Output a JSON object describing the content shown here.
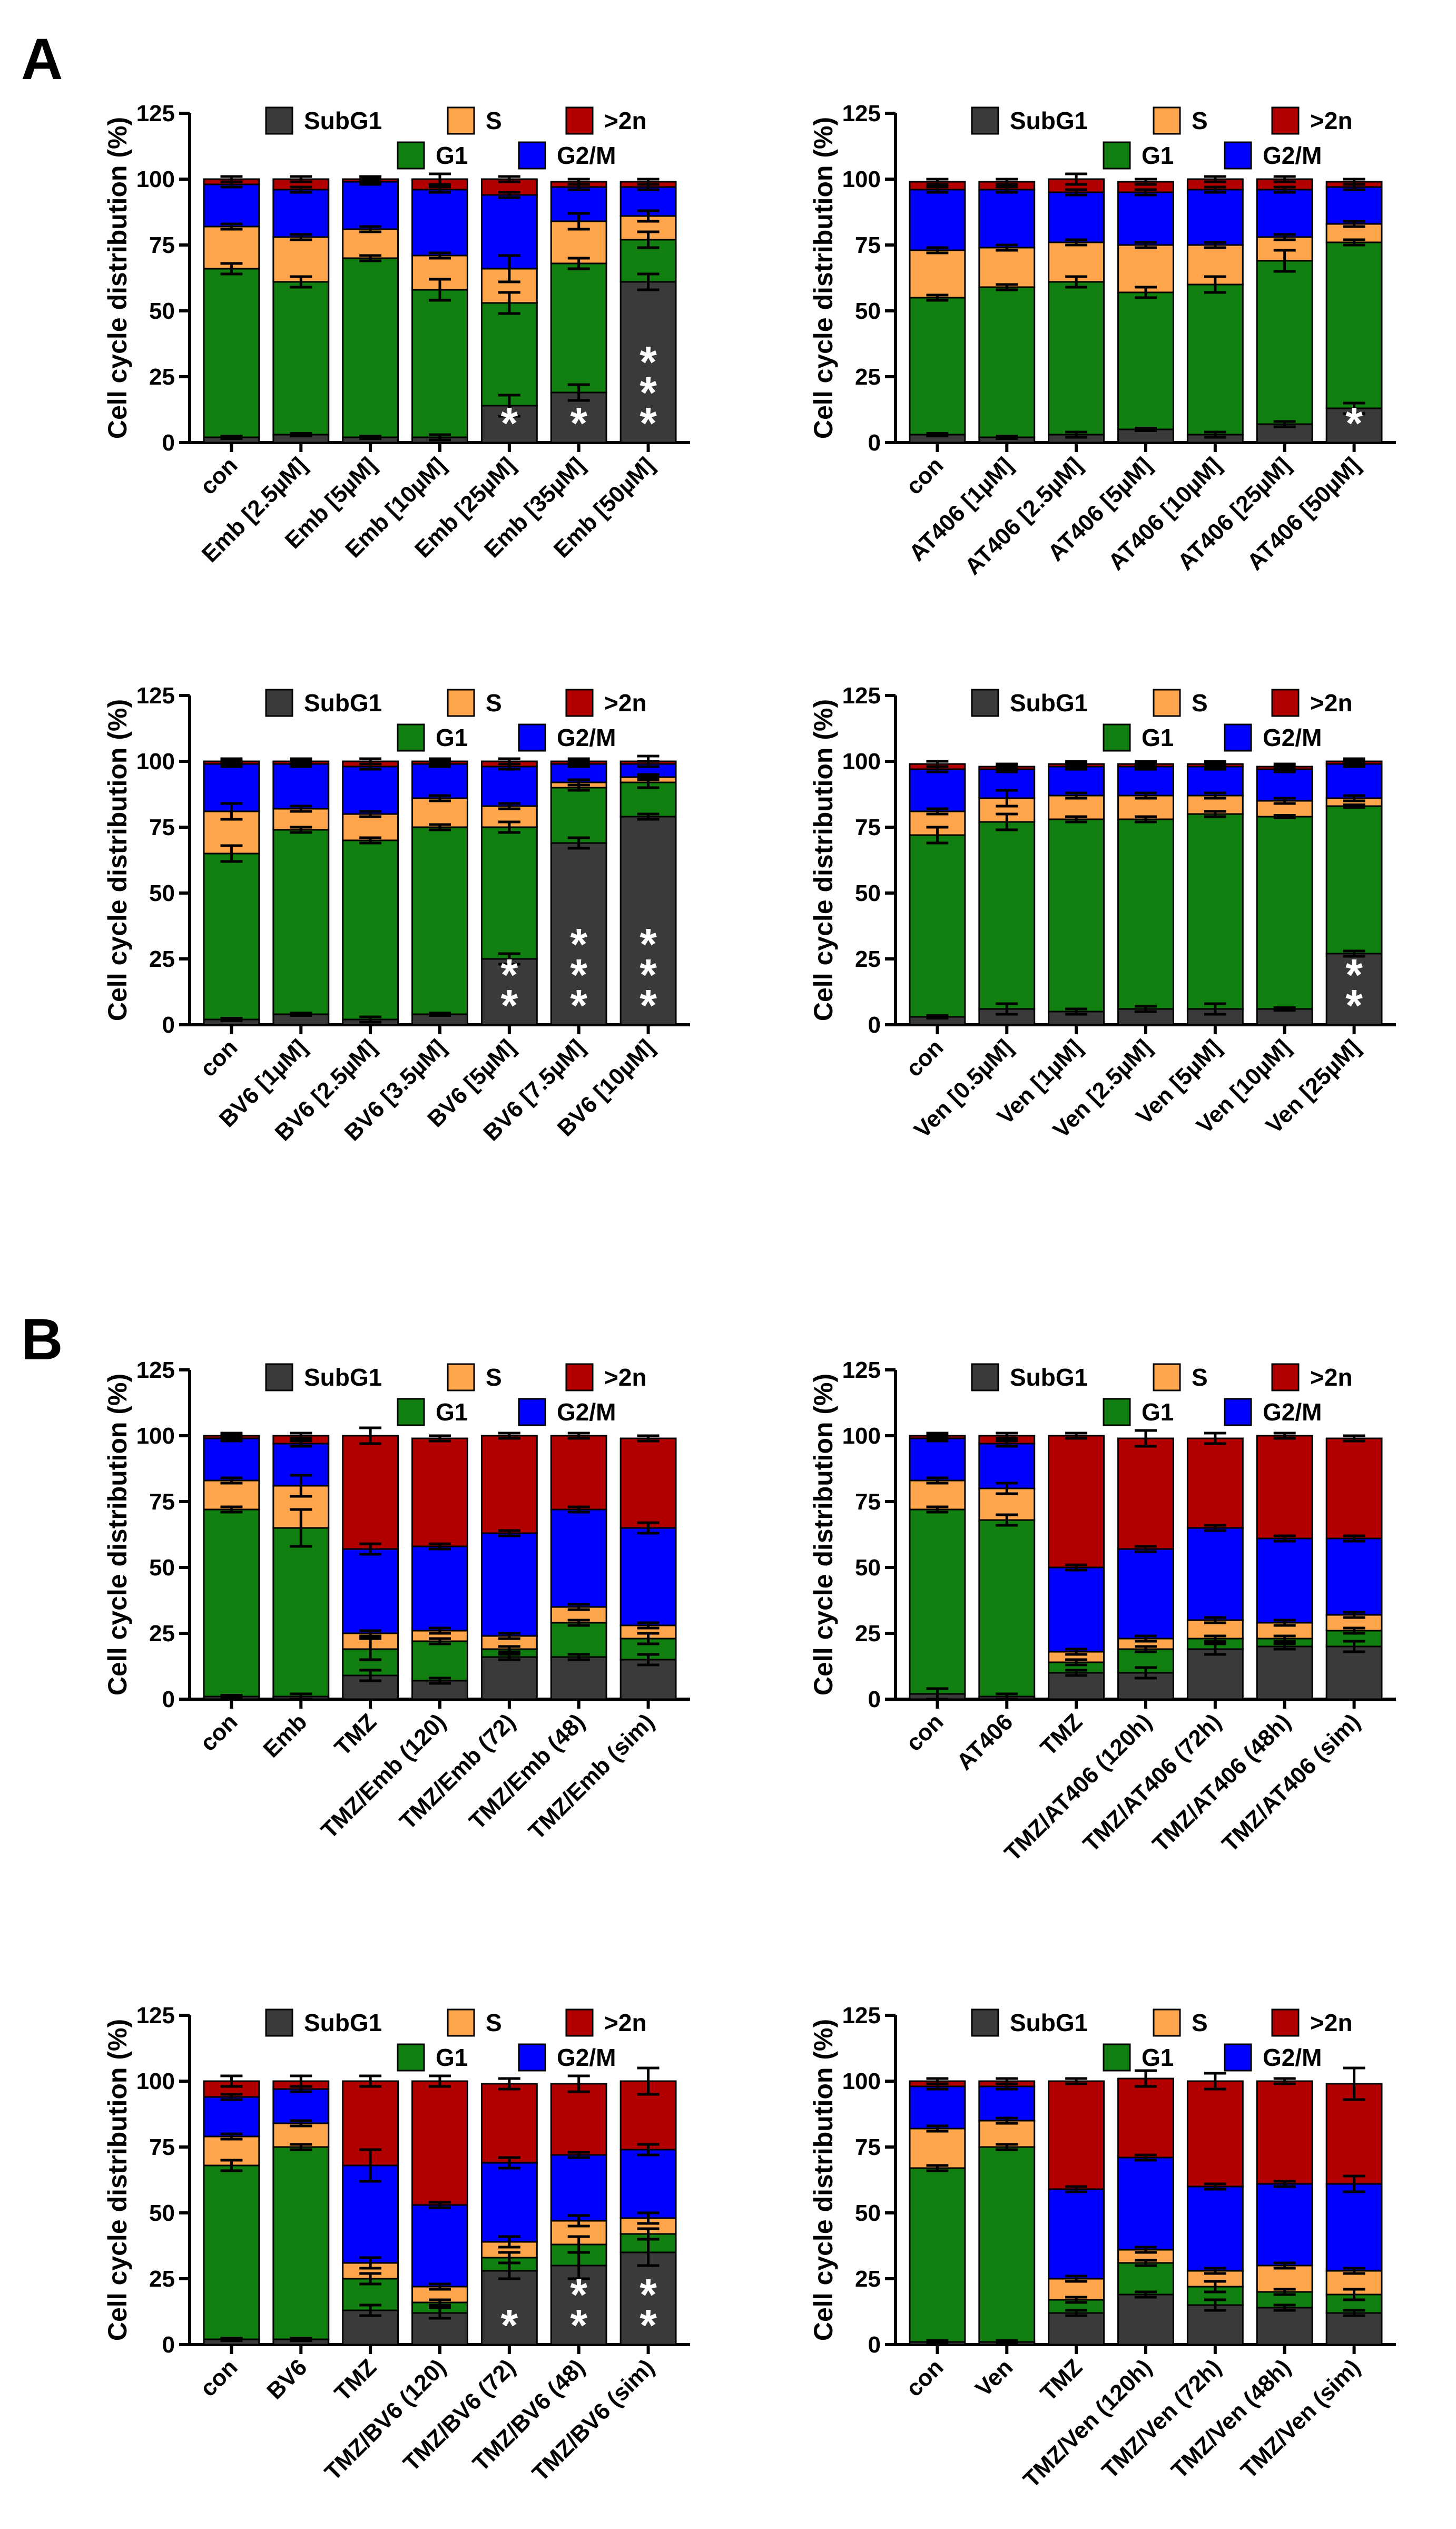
{
  "figure": {
    "panel_labels": [
      "A",
      "B"
    ],
    "legend": [
      {
        "key": "SubG1",
        "label": "SubG1",
        "color": "#3a3a3a"
      },
      {
        "key": "S",
        "label": "S",
        "color": "#ffa64d"
      },
      {
        "key": "N2",
        "label": ">2n",
        "color": "#b20000"
      },
      {
        "key": "G1",
        "label": "G1",
        "color": "#118011"
      },
      {
        "key": "G2M",
        "label": "G2/M",
        "color": "#0000ff"
      }
    ],
    "significance_color": "#ffffff"
  },
  "chart_data": [
    {
      "type": "bar",
      "stacked": true,
      "panel": "A",
      "title": "",
      "xlabel": "",
      "ylabel": "Cell cycle distribution (%)",
      "ylim": [
        0,
        125
      ],
      "yticks": [
        0,
        25,
        50,
        75,
        100,
        125
      ],
      "stack_order": [
        "SubG1",
        "G1",
        "S",
        "G2/M",
        ">2n"
      ],
      "legend_position": "top",
      "categories": [
        "con",
        "Emb [2.5µM]",
        "Emb [5µM]",
        "Emb [10µM]",
        "Emb [25µM]",
        "Emb [35µM]",
        "Emb [50µM]"
      ],
      "series": [
        {
          "name": "SubG1",
          "values": [
            2,
            3,
            2,
            2,
            14,
            19,
            61
          ]
        },
        {
          "name": "G1",
          "values": [
            64,
            58,
            68,
            56,
            39,
            49,
            16
          ]
        },
        {
          "name": "S",
          "values": [
            16,
            17,
            11,
            13,
            13,
            16,
            9
          ]
        },
        {
          "name": "G2/M",
          "values": [
            16,
            18,
            18,
            25,
            28,
            13,
            11
          ]
        },
        {
          "name": ">2n",
          "values": [
            2,
            4,
            1,
            4,
            6,
            2,
            2
          ]
        }
      ],
      "error_bars": {
        "SubG1": [
          0.5,
          0.5,
          0.5,
          1,
          4,
          3,
          3
        ],
        "G1": [
          2,
          2,
          1,
          4,
          4,
          2,
          3
        ],
        "S": [
          1,
          1,
          1,
          1,
          5,
          3,
          2
        ],
        "G2/M": [
          1,
          1,
          1,
          1,
          1,
          1,
          1
        ],
        ">2n": [
          1,
          1,
          1,
          2,
          1,
          1,
          1
        ]
      },
      "annotations": [
        "",
        "",
        "",
        "",
        "*",
        "*",
        "***"
      ]
    },
    {
      "type": "bar",
      "stacked": true,
      "panel": "A",
      "title": "",
      "xlabel": "",
      "ylabel": "Cell cycle distribution (%)",
      "ylim": [
        0,
        125
      ],
      "yticks": [
        0,
        25,
        50,
        75,
        100,
        125
      ],
      "stack_order": [
        "SubG1",
        "G1",
        "S",
        "G2/M",
        ">2n"
      ],
      "legend_position": "top",
      "categories": [
        "con",
        "AT406 [1µM]",
        "AT406 [2.5µM]",
        "AT406 [5µM]",
        "AT406 [10µM]",
        "AT406 [25µM]",
        "AT406 [50µM]"
      ],
      "series": [
        {
          "name": "SubG1",
          "values": [
            3,
            2,
            3,
            5,
            3,
            7,
            13
          ]
        },
        {
          "name": "G1",
          "values": [
            52,
            57,
            58,
            52,
            57,
            62,
            63
          ]
        },
        {
          "name": "S",
          "values": [
            18,
            15,
            15,
            18,
            15,
            9,
            7
          ]
        },
        {
          "name": "G2/M",
          "values": [
            23,
            22,
            19,
            20,
            21,
            18,
            14
          ]
        },
        {
          "name": ">2n",
          "values": [
            3,
            3,
            5,
            4,
            4,
            4,
            2
          ]
        }
      ],
      "error_bars": {
        "SubG1": [
          0.5,
          0.5,
          1,
          0.5,
          1,
          1,
          2
        ],
        "G1": [
          1,
          1,
          2,
          2,
          3,
          4,
          1
        ],
        "S": [
          1,
          1,
          1,
          1,
          1,
          1,
          1
        ],
        "G2/M": [
          1,
          1,
          1,
          1,
          1,
          1,
          1
        ],
        ">2n": [
          1,
          1,
          2,
          1,
          1,
          1,
          1
        ]
      },
      "annotations": [
        "",
        "",
        "",
        "",
        "",
        "",
        "*"
      ]
    },
    {
      "type": "bar",
      "stacked": true,
      "panel": "A",
      "title": "",
      "xlabel": "",
      "ylabel": "Cell cycle distribution (%)",
      "ylim": [
        0,
        125
      ],
      "yticks": [
        0,
        25,
        50,
        75,
        100,
        125
      ],
      "stack_order": [
        "SubG1",
        "G1",
        "S",
        "G2/M",
        ">2n"
      ],
      "legend_position": "top",
      "categories": [
        "con",
        "BV6 [1µM]",
        "BV6 [2.5µM]",
        "BV6 [3.5µM]",
        "BV6 [5µM]",
        "BV6 [7.5µM]",
        "BV6 [10µM]"
      ],
      "series": [
        {
          "name": "SubG1",
          "values": [
            2,
            4,
            2,
            4,
            25,
            69,
            79
          ]
        },
        {
          "name": "G1",
          "values": [
            63,
            70,
            68,
            71,
            50,
            21,
            13
          ]
        },
        {
          "name": "S",
          "values": [
            16,
            8,
            10,
            11,
            8,
            2,
            2
          ]
        },
        {
          "name": "G2/M",
          "values": [
            18,
            17,
            18,
            13,
            15,
            7,
            5
          ]
        },
        {
          "name": ">2n",
          "values": [
            1,
            1,
            2,
            1,
            2,
            1,
            1
          ]
        }
      ],
      "error_bars": {
        "SubG1": [
          0.5,
          0.5,
          1,
          0.5,
          2,
          2,
          1
        ],
        "G1": [
          3,
          1,
          1,
          1,
          2,
          1,
          2
        ],
        "S": [
          3,
          1,
          1,
          1,
          1,
          1,
          1
        ],
        "G2/M": [
          1,
          1,
          1,
          1,
          1,
          1,
          1
        ],
        ">2n": [
          1,
          1,
          1,
          1,
          1,
          1,
          2
        ]
      },
      "annotations": [
        "",
        "",
        "",
        "",
        "**",
        "***",
        "***"
      ]
    },
    {
      "type": "bar",
      "stacked": true,
      "panel": "A",
      "title": "",
      "xlabel": "",
      "ylabel": "Cell cycle distribution (%)",
      "ylim": [
        0,
        125
      ],
      "yticks": [
        0,
        25,
        50,
        75,
        100,
        125
      ],
      "stack_order": [
        "SubG1",
        "G1",
        "S",
        "G2/M",
        ">2n"
      ],
      "legend_position": "top",
      "categories": [
        "con",
        "Ven [0.5µM]",
        "Ven [1µM]",
        "Ven [2.5µM]",
        "Ven [5µM]",
        "Ven [10µM]",
        "Ven [25µM]"
      ],
      "series": [
        {
          "name": "SubG1",
          "values": [
            3,
            6,
            5,
            6,
            6,
            6,
            27
          ]
        },
        {
          "name": "G1",
          "values": [
            69,
            71,
            73,
            72,
            74,
            73,
            56
          ]
        },
        {
          "name": "S",
          "values": [
            9,
            9,
            9,
            9,
            7,
            6,
            3
          ]
        },
        {
          "name": "G2/M",
          "values": [
            16,
            11,
            11,
            11,
            11,
            12,
            13
          ]
        },
        {
          "name": ">2n",
          "values": [
            2,
            1,
            1,
            1,
            1,
            1,
            1
          ]
        }
      ],
      "error_bars": {
        "SubG1": [
          0.5,
          2,
          1,
          1,
          2,
          0.5,
          1
        ],
        "G1": [
          3,
          3,
          1,
          1,
          1,
          0.5,
          0.5
        ],
        "S": [
          1,
          3,
          1,
          1,
          1,
          1,
          1
        ],
        "G2/M": [
          1,
          1,
          1,
          1,
          1,
          1,
          1
        ],
        ">2n": [
          1,
          1,
          1,
          1,
          1,
          1,
          1
        ]
      },
      "annotations": [
        "",
        "",
        "",
        "",
        "",
        "",
        "**"
      ]
    },
    {
      "type": "bar",
      "stacked": true,
      "panel": "B",
      "title": "",
      "xlabel": "",
      "ylabel": "Cell cycle distribution (%)",
      "ylim": [
        0,
        125
      ],
      "yticks": [
        0,
        25,
        50,
        75,
        100,
        125
      ],
      "stack_order": [
        "SubG1",
        "G1",
        "S",
        "G2/M",
        ">2n"
      ],
      "legend_position": "top",
      "categories": [
        "con",
        "Emb",
        "TMZ",
        "TMZ/Emb (120)",
        "TMZ/Emb (72)",
        "TMZ/Emb (48)",
        "TMZ/Emb (sim)"
      ],
      "series": [
        {
          "name": "SubG1",
          "values": [
            1,
            1,
            9,
            7,
            16,
            16,
            15
          ]
        },
        {
          "name": "G1",
          "values": [
            71,
            64,
            10,
            15,
            3,
            13,
            8
          ]
        },
        {
          "name": "S",
          "values": [
            11,
            16,
            6,
            4,
            5,
            6,
            5
          ]
        },
        {
          "name": "G2/M",
          "values": [
            16,
            16,
            32,
            32,
            39,
            37,
            37
          ]
        },
        {
          "name": ">2n",
          "values": [
            1,
            3,
            43,
            41,
            37,
            28,
            34
          ]
        }
      ],
      "error_bars": {
        "SubG1": [
          0.5,
          1,
          2,
          1,
          1,
          1,
          2
        ],
        "G1": [
          1,
          7,
          4,
          1,
          1,
          1,
          2
        ],
        "S": [
          1,
          4,
          1,
          1,
          1,
          1,
          1
        ],
        "G2/M": [
          1,
          1,
          2,
          1,
          1,
          1,
          2
        ],
        ">2n": [
          1,
          1,
          3,
          1,
          1,
          1,
          1
        ]
      },
      "annotations": [
        "",
        "",
        "",
        "",
        "",
        "",
        ""
      ]
    },
    {
      "type": "bar",
      "stacked": true,
      "panel": "B",
      "title": "",
      "xlabel": "",
      "ylabel": "Cell cycle distribution (%)",
      "ylim": [
        0,
        125
      ],
      "yticks": [
        0,
        25,
        50,
        75,
        100,
        125
      ],
      "stack_order": [
        "SubG1",
        "G1",
        "S",
        "G2/M",
        ">2n"
      ],
      "legend_position": "top",
      "categories": [
        "con",
        "AT406",
        "TMZ",
        "TMZ/AT406 (120h)",
        "TMZ/AT406 (72h)",
        "TMZ/AT406 (48h)",
        "TMZ/AT406 (sim)"
      ],
      "series": [
        {
          "name": "SubG1",
          "values": [
            2,
            1,
            10,
            10,
            19,
            20,
            20
          ]
        },
        {
          "name": "G1",
          "values": [
            70,
            67,
            4,
            9,
            4,
            3,
            6
          ]
        },
        {
          "name": "S",
          "values": [
            11,
            12,
            4,
            4,
            7,
            6,
            6
          ]
        },
        {
          "name": "G2/M",
          "values": [
            16,
            17,
            32,
            34,
            35,
            32,
            29
          ]
        },
        {
          "name": ">2n",
          "values": [
            1,
            3,
            50,
            42,
            34,
            39,
            38
          ]
        }
      ],
      "error_bars": {
        "SubG1": [
          2,
          1,
          1,
          2,
          2,
          1,
          2
        ],
        "G1": [
          1,
          2,
          1,
          1,
          1,
          1,
          1
        ],
        "S": [
          1,
          2,
          1,
          1,
          1,
          1,
          1
        ],
        "G2/M": [
          1,
          1,
          1,
          1,
          1,
          1,
          1
        ],
        ">2n": [
          1,
          1,
          1,
          3,
          2,
          1,
          1
        ]
      },
      "annotations": [
        "",
        "",
        "",
        "",
        "",
        "",
        ""
      ]
    },
    {
      "type": "bar",
      "stacked": true,
      "panel": "B",
      "title": "",
      "xlabel": "",
      "ylabel": "Cell cycle distribution (%)",
      "ylim": [
        0,
        125
      ],
      "yticks": [
        0,
        25,
        50,
        75,
        100,
        125
      ],
      "stack_order": [
        "SubG1",
        "G1",
        "S",
        "G2/M",
        ">2n"
      ],
      "legend_position": "top",
      "categories": [
        "con",
        "BV6",
        "TMZ",
        "TMZ/BV6 (120)",
        "TMZ/BV6 (72)",
        "TMZ/BV6 (48)",
        "TMZ/BV6 (sim)"
      ],
      "series": [
        {
          "name": "SubG1",
          "values": [
            2,
            2,
            13,
            12,
            28,
            30,
            35
          ]
        },
        {
          "name": "G1",
          "values": [
            66,
            73,
            12,
            4,
            5,
            8,
            7
          ]
        },
        {
          "name": "S",
          "values": [
            11,
            9,
            6,
            6,
            6,
            9,
            6
          ]
        },
        {
          "name": "G2/M",
          "values": [
            15,
            13,
            37,
            31,
            30,
            25,
            26
          ]
        },
        {
          "name": ">2n",
          "values": [
            6,
            3,
            32,
            47,
            30,
            27,
            26
          ]
        }
      ],
      "error_bars": {
        "SubG1": [
          0.5,
          0.5,
          2,
          2,
          3,
          5,
          5
        ],
        "G1": [
          2,
          1,
          2,
          1,
          2,
          3,
          2
        ],
        "S": [
          1,
          1,
          2,
          1,
          2,
          2,
          2
        ],
        "G2/M": [
          1,
          1,
          6,
          1,
          2,
          1,
          2
        ],
        ">2n": [
          2,
          2,
          2,
          2,
          2,
          3,
          5
        ]
      },
      "annotations": [
        "",
        "",
        "",
        "",
        "*",
        "**",
        "**"
      ]
    },
    {
      "type": "bar",
      "stacked": true,
      "panel": "B",
      "title": "",
      "xlabel": "",
      "ylabel": "Cell cycle distribution (%)",
      "ylim": [
        0,
        125
      ],
      "yticks": [
        0,
        25,
        50,
        75,
        100,
        125
      ],
      "stack_order": [
        "SubG1",
        "G1",
        "S",
        "G2/M",
        ">2n"
      ],
      "legend_position": "top",
      "categories": [
        "con",
        "Ven",
        "TMZ",
        "TMZ/Ven (120h)",
        "TMZ/Ven (72h)",
        "TMZ/Ven (48h)",
        "TMZ/Ven (sim)"
      ],
      "series": [
        {
          "name": "SubG1",
          "values": [
            1,
            1,
            12,
            19,
            15,
            14,
            12
          ]
        },
        {
          "name": "G1",
          "values": [
            66,
            74,
            5,
            12,
            7,
            6,
            7
          ]
        },
        {
          "name": "S",
          "values": [
            15,
            10,
            8,
            5,
            6,
            10,
            9
          ]
        },
        {
          "name": "G2/M",
          "values": [
            16,
            13,
            34,
            35,
            32,
            31,
            33
          ]
        },
        {
          "name": ">2n",
          "values": [
            2,
            2,
            41,
            30,
            40,
            39,
            38
          ]
        }
      ],
      "error_bars": {
        "SubG1": [
          0.5,
          0.5,
          1,
          1,
          2,
          1,
          1
        ],
        "G1": [
          1,
          1,
          1,
          1,
          2,
          1,
          2
        ],
        "S": [
          1,
          1,
          1,
          1,
          1,
          1,
          1
        ],
        "G2/M": [
          1,
          1,
          1,
          1,
          1,
          1,
          3
        ],
        ">2n": [
          1,
          1,
          1,
          3,
          3,
          1,
          6
        ]
      },
      "annotations": [
        "",
        "",
        "",
        "",
        "",
        "",
        ""
      ]
    }
  ]
}
